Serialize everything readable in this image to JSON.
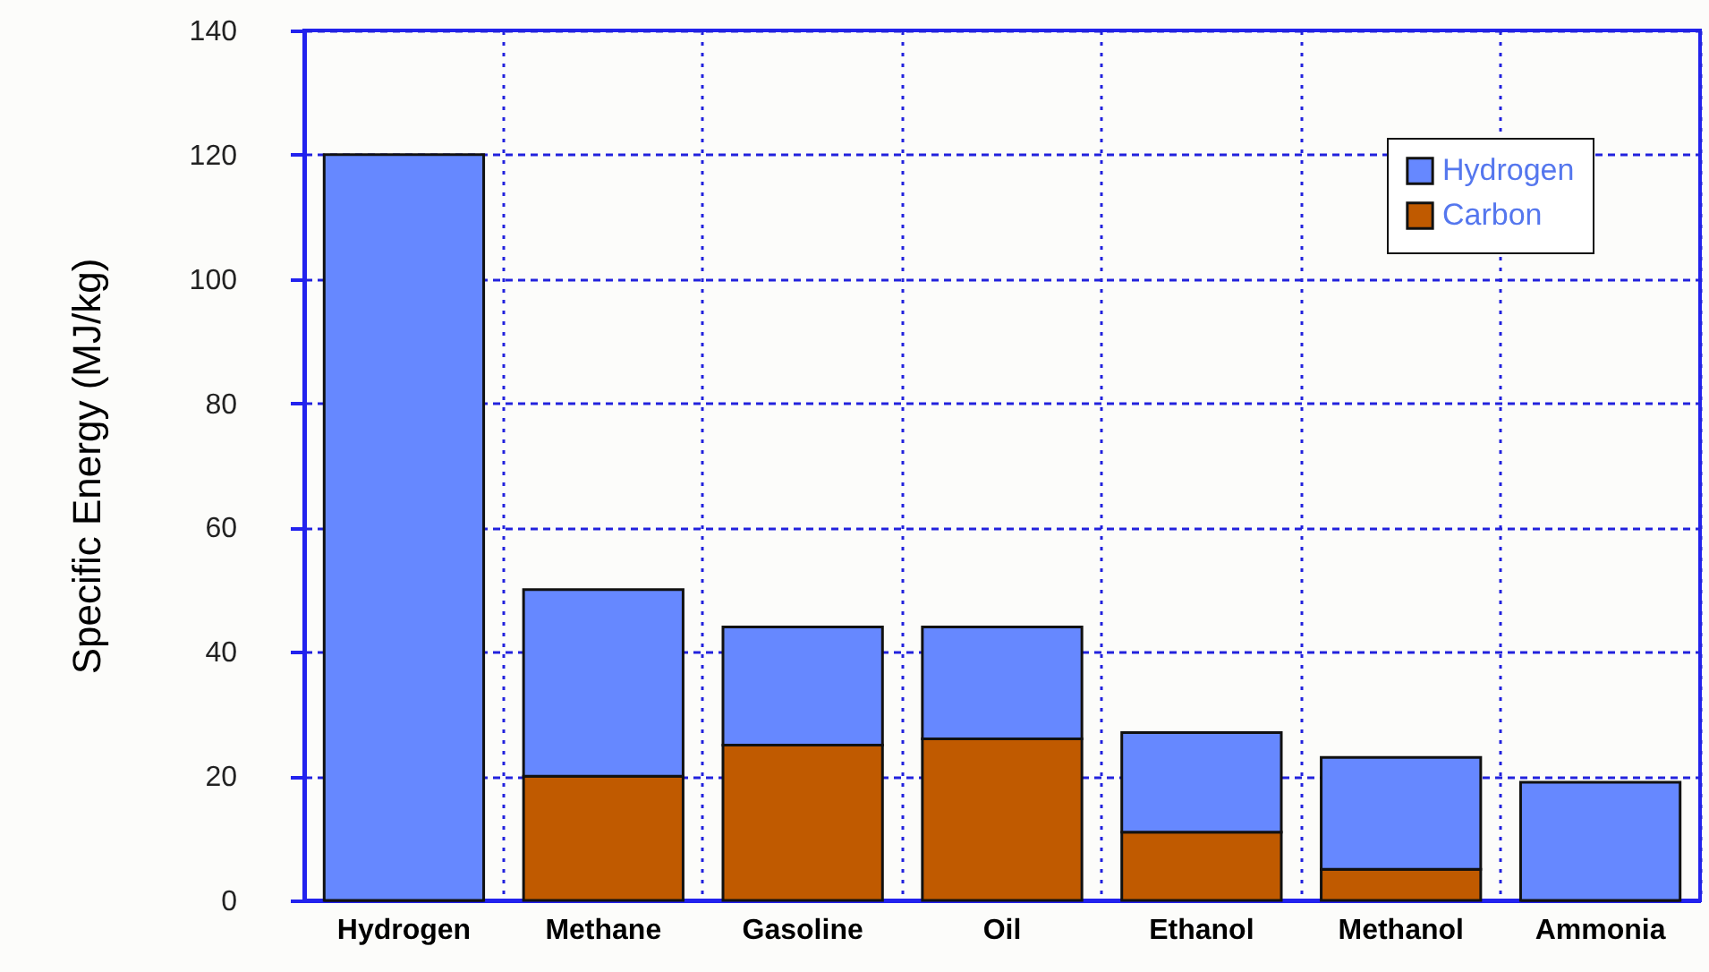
{
  "chart_data": {
    "type": "bar",
    "stacked": true,
    "ylabel": "Specific Energy (MJ/kg)",
    "categories": [
      "Hydrogen",
      "Methane",
      "Gasoline",
      "Oil",
      "Ethanol",
      "Methanol",
      "Ammonia"
    ],
    "series": [
      {
        "name": "Carbon",
        "color": "#c05a00",
        "values": [
          0,
          20,
          25,
          26,
          11,
          5,
          0
        ]
      },
      {
        "name": "Hydrogen",
        "color": "#6688ff",
        "values": [
          120,
          30,
          19,
          18,
          16,
          18,
          19
        ]
      }
    ],
    "ylim": [
      0,
      140
    ],
    "yticks": [
      0,
      20,
      40,
      60,
      80,
      100,
      120,
      140
    ],
    "grid": true,
    "legend": "top right"
  }
}
